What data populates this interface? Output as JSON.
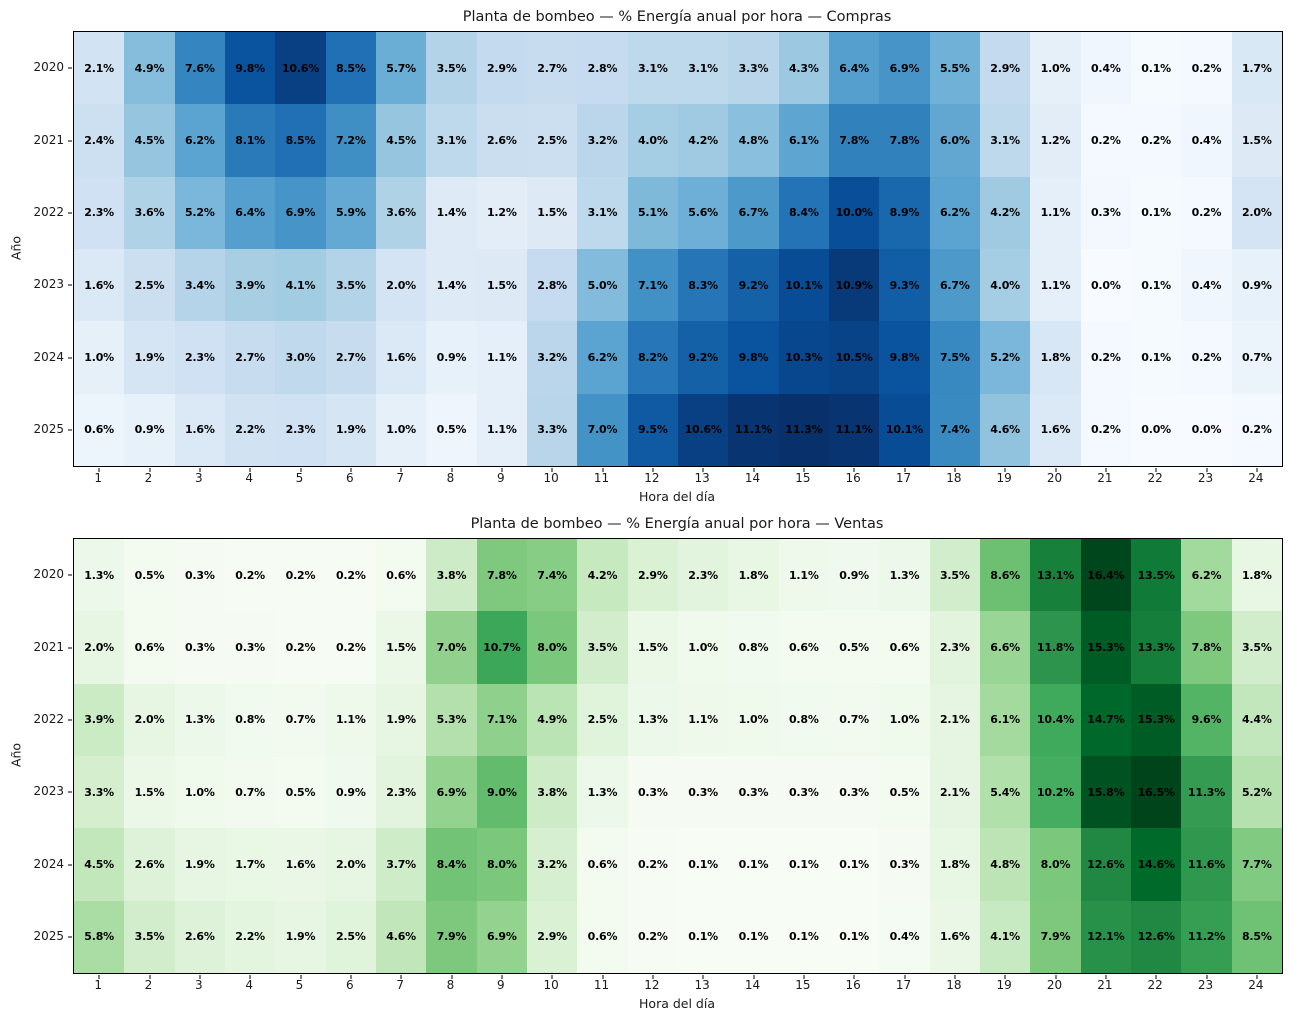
{
  "figure": {
    "background_color": "#ffffff",
    "annotation_text_color": "#000000",
    "spine_color": "#000000"
  },
  "chart_data": [
    {
      "type": "heatmap",
      "title": "Planta de bombeo — % Energía anual por hora — Compras",
      "xlabel": "Hora del día",
      "ylabel": "Año",
      "colormap": "Blues",
      "value_suffix": "%",
      "grid": false,
      "x": [
        1,
        2,
        3,
        4,
        5,
        6,
        7,
        8,
        9,
        10,
        11,
        12,
        13,
        14,
        15,
        16,
        17,
        18,
        19,
        20,
        21,
        22,
        23,
        24
      ],
      "y": [
        2020,
        2021,
        2022,
        2023,
        2024,
        2025
      ],
      "values": [
        [
          2.1,
          4.9,
          7.6,
          9.8,
          10.6,
          8.5,
          5.7,
          3.5,
          2.9,
          2.7,
          2.8,
          3.1,
          3.1,
          3.3,
          4.3,
          6.4,
          6.9,
          5.5,
          2.9,
          1.0,
          0.4,
          0.1,
          0.2,
          1.7
        ],
        [
          2.4,
          4.5,
          6.2,
          8.1,
          8.5,
          7.2,
          4.5,
          3.1,
          2.6,
          2.5,
          3.2,
          4.0,
          4.2,
          4.8,
          6.1,
          7.8,
          7.8,
          6.0,
          3.1,
          1.2,
          0.2,
          0.2,
          0.4,
          1.5
        ],
        [
          2.3,
          3.6,
          5.2,
          6.4,
          6.9,
          5.9,
          3.6,
          1.4,
          1.2,
          1.5,
          3.1,
          5.1,
          5.6,
          6.7,
          8.4,
          10.0,
          8.9,
          6.2,
          4.2,
          1.1,
          0.3,
          0.1,
          0.2,
          2.0
        ],
        [
          1.6,
          2.5,
          3.4,
          3.9,
          4.1,
          3.5,
          2.0,
          1.4,
          1.5,
          2.8,
          5.0,
          7.1,
          8.3,
          9.2,
          10.1,
          10.9,
          9.3,
          6.7,
          4.0,
          1.1,
          0.0,
          0.1,
          0.4,
          0.9
        ],
        [
          1.0,
          1.9,
          2.3,
          2.7,
          3.0,
          2.7,
          1.6,
          0.9,
          1.1,
          3.2,
          6.2,
          8.2,
          9.2,
          9.8,
          10.3,
          10.5,
          9.8,
          7.5,
          5.2,
          1.8,
          0.2,
          0.1,
          0.2,
          0.7
        ],
        [
          0.6,
          0.9,
          1.6,
          2.2,
          2.3,
          1.9,
          1.0,
          0.5,
          1.1,
          3.3,
          7.0,
          9.5,
          10.6,
          11.1,
          11.3,
          11.1,
          10.1,
          7.4,
          4.6,
          1.6,
          0.2,
          0.0,
          0.0,
          0.2
        ]
      ]
    },
    {
      "type": "heatmap",
      "title": "Planta de bombeo — % Energía anual por hora — Ventas",
      "xlabel": "Hora del día",
      "ylabel": "Año",
      "colormap": "Greens",
      "value_suffix": "%",
      "grid": false,
      "x": [
        1,
        2,
        3,
        4,
        5,
        6,
        7,
        8,
        9,
        10,
        11,
        12,
        13,
        14,
        15,
        16,
        17,
        18,
        19,
        20,
        21,
        22,
        23,
        24
      ],
      "y": [
        2020,
        2021,
        2022,
        2023,
        2024,
        2025
      ],
      "values": [
        [
          1.3,
          0.5,
          0.3,
          0.2,
          0.2,
          0.2,
          0.6,
          3.8,
          7.8,
          7.4,
          4.2,
          2.9,
          2.3,
          1.8,
          1.1,
          0.9,
          1.3,
          3.5,
          8.6,
          13.1,
          16.4,
          13.5,
          6.2,
          1.8
        ],
        [
          2.0,
          0.6,
          0.3,
          0.3,
          0.2,
          0.2,
          1.5,
          7.0,
          10.7,
          8.0,
          3.5,
          1.5,
          1.0,
          0.8,
          0.6,
          0.5,
          0.6,
          2.3,
          6.6,
          11.8,
          15.3,
          13.3,
          7.8,
          3.5
        ],
        [
          3.9,
          2.0,
          1.3,
          0.8,
          0.7,
          1.1,
          1.9,
          5.3,
          7.1,
          4.9,
          2.5,
          1.3,
          1.1,
          1.0,
          0.8,
          0.7,
          1.0,
          2.1,
          6.1,
          10.4,
          14.7,
          15.3,
          9.6,
          4.4
        ],
        [
          3.3,
          1.5,
          1.0,
          0.7,
          0.5,
          0.9,
          2.3,
          6.9,
          9.0,
          3.8,
          1.3,
          0.3,
          0.3,
          0.3,
          0.3,
          0.3,
          0.5,
          2.1,
          5.4,
          10.2,
          15.8,
          16.5,
          11.3,
          5.2
        ],
        [
          4.5,
          2.6,
          1.9,
          1.7,
          1.6,
          2.0,
          3.7,
          8.4,
          8.0,
          3.2,
          0.6,
          0.2,
          0.1,
          0.1,
          0.1,
          0.1,
          0.3,
          1.8,
          4.8,
          8.0,
          12.6,
          14.6,
          11.6,
          7.7
        ],
        [
          5.8,
          3.5,
          2.6,
          2.2,
          1.9,
          2.5,
          4.6,
          7.9,
          6.9,
          2.9,
          0.6,
          0.2,
          0.1,
          0.1,
          0.1,
          0.1,
          0.4,
          1.6,
          4.1,
          7.9,
          12.1,
          12.6,
          11.2,
          8.5
        ]
      ]
    }
  ]
}
